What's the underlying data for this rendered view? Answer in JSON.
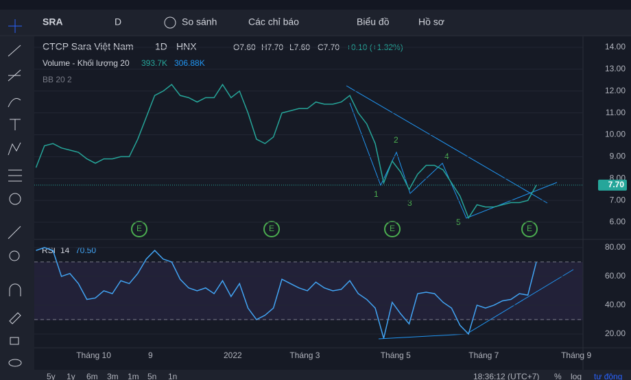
{
  "toolbar": {
    "symbol": "SRA",
    "interval": "D",
    "compare": "So sánh",
    "indicators": "Các chỉ báo",
    "chart_type": "Biểu đồ",
    "profile": "Hồ sơ"
  },
  "legend": {
    "name": "CTCP Sara Việt Nam",
    "interval": "1D",
    "exchange": "HNX",
    "open": "O7.60",
    "high": "H7.70",
    "low": "L7.60",
    "close": "C7.70",
    "change": "+0.10 (+1.32%)",
    "volume_title": "Volume - Khối lượng 20",
    "volume_value": "393.7K",
    "volume_ma": "306.88K",
    "bb": "BB 20 2"
  },
  "waves": [
    "1",
    "2",
    "3",
    "4",
    "5"
  ],
  "events": [
    "E",
    "E",
    "E",
    "E"
  ],
  "chart_data": [
    {
      "type": "line",
      "name": "price",
      "color": "#26a69a",
      "values": [
        8.5,
        9.5,
        9.6,
        9.4,
        9.3,
        9.2,
        8.9,
        8.7,
        8.9,
        8.9,
        9.0,
        9.0,
        9.8,
        10.8,
        11.8,
        12.0,
        12.3,
        11.8,
        11.7,
        11.5,
        11.7,
        11.7,
        12.3,
        11.7,
        12.0,
        11.0,
        9.8,
        9.6,
        9.9,
        11.0,
        11.1,
        11.2,
        11.2,
        11.5,
        11.4,
        11.4,
        11.5,
        11.8,
        11.0,
        10.5,
        9.6,
        7.8,
        8.8,
        8.3,
        7.5,
        8.2,
        8.6,
        8.6,
        8.4,
        7.8,
        7.2,
        6.2,
        6.8,
        6.7,
        6.7,
        6.8,
        6.9,
        6.9,
        7.0,
        7.7
      ],
      "ylim": [
        5.28,
        14.44
      ],
      "yticks": [
        {
          "value": 14,
          "label": "14.00"
        },
        {
          "value": 13,
          "label": "13.00"
        },
        {
          "value": 12,
          "label": "12.00"
        },
        {
          "value": 11,
          "label": "11.00"
        },
        {
          "value": 10,
          "label": "10.00"
        },
        {
          "value": 9,
          "label": "9.00"
        },
        {
          "value": 8,
          "label": "8.00"
        },
        {
          "value": 7,
          "label": "7.00"
        },
        {
          "value": 6,
          "label": "6.00"
        }
      ],
      "last_price": {
        "value": 7.7,
        "label": "7.70"
      },
      "xlim": [
        -0.2,
        64.5
      ],
      "xticks": [
        {
          "value": 6.8,
          "label": "Tháng 10"
        },
        {
          "value": 13.5,
          "label": "9"
        },
        {
          "value": 23.2,
          "label": "2022"
        },
        {
          "value": 31.7,
          "label": "Tháng 3"
        },
        {
          "value": 42.4,
          "label": "Tháng 5"
        },
        {
          "value": 52.8,
          "label": "Tháng 7"
        },
        {
          "value": 63.7,
          "label": "Tháng 9"
        }
      ]
    },
    {
      "type": "line",
      "name": "RSI",
      "length": "14",
      "last": "70.50",
      "color": "#42a5f5",
      "values": [
        78,
        80,
        78,
        60,
        62,
        55,
        44,
        45,
        50,
        48,
        57,
        55,
        62,
        72,
        78,
        72,
        70,
        58,
        52,
        50,
        52,
        48,
        57,
        46,
        55,
        38,
        30,
        33,
        38,
        58,
        55,
        52,
        50,
        56,
        52,
        50,
        51,
        57,
        48,
        44,
        38,
        17,
        42,
        34,
        27,
        48,
        49,
        48,
        42,
        38,
        26,
        20,
        40,
        38,
        40,
        43,
        44,
        48,
        47,
        70
      ],
      "ylim": [
        11.4,
        85.2
      ],
      "yticks": [
        {
          "value": 80,
          "label": "80.00"
        },
        {
          "value": 60,
          "label": "60.00"
        },
        {
          "value": 40,
          "label": "40.00"
        },
        {
          "value": 20,
          "label": "20.00"
        }
      ],
      "bands": [
        70,
        30
      ],
      "xlim": [
        -0.2,
        64.5
      ]
    }
  ],
  "bottom": {
    "ranges": [
      "5y",
      "1y",
      "6m",
      "3m",
      "1m",
      "5n",
      "1n"
    ],
    "time": "18:36:12 (UTC+7)",
    "percent": "%",
    "log": "log",
    "auto": "tự động"
  }
}
